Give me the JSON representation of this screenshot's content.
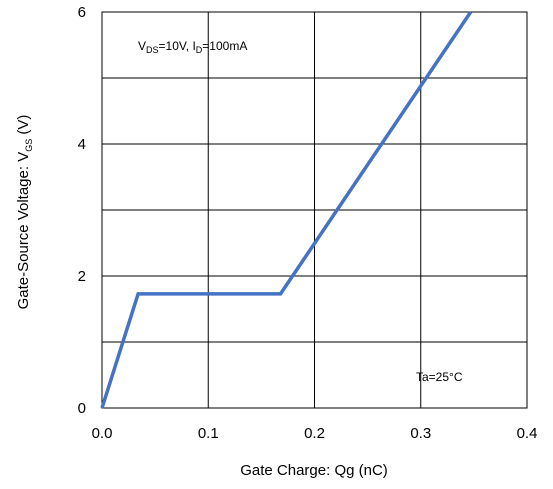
{
  "chart_data": {
    "type": "line",
    "xlabel": "Gate Charge: Qg (nC)",
    "ylabel": {
      "main": "Gate-Source Voltage: V",
      "sub": "GS",
      "unit": " (V)"
    },
    "xlim": [
      0.0,
      0.4
    ],
    "ylim": [
      0,
      6
    ],
    "x_ticks": [
      "0.0",
      "0.1",
      "0.2",
      "0.3",
      "0.4"
    ],
    "y_ticks": [
      "0",
      "2",
      "4",
      "6"
    ],
    "x_grid": [
      0.0,
      0.1,
      0.2,
      0.3,
      0.4
    ],
    "y_grid": [
      0,
      1,
      2,
      3,
      4,
      5,
      6
    ],
    "grid": true,
    "series": [
      {
        "color": "#4472c4",
        "x": [
          0.0,
          0.034,
          0.168,
          0.347
        ],
        "y": [
          0.0,
          1.73,
          1.73,
          6.0
        ]
      }
    ],
    "annotations": {
      "conditions": {
        "v": "V",
        "v_sub": "DS",
        "mid": "=10V, I",
        "i_sub": "D",
        "tail": "=100mA"
      },
      "temperature": "Ta=25°C"
    }
  }
}
